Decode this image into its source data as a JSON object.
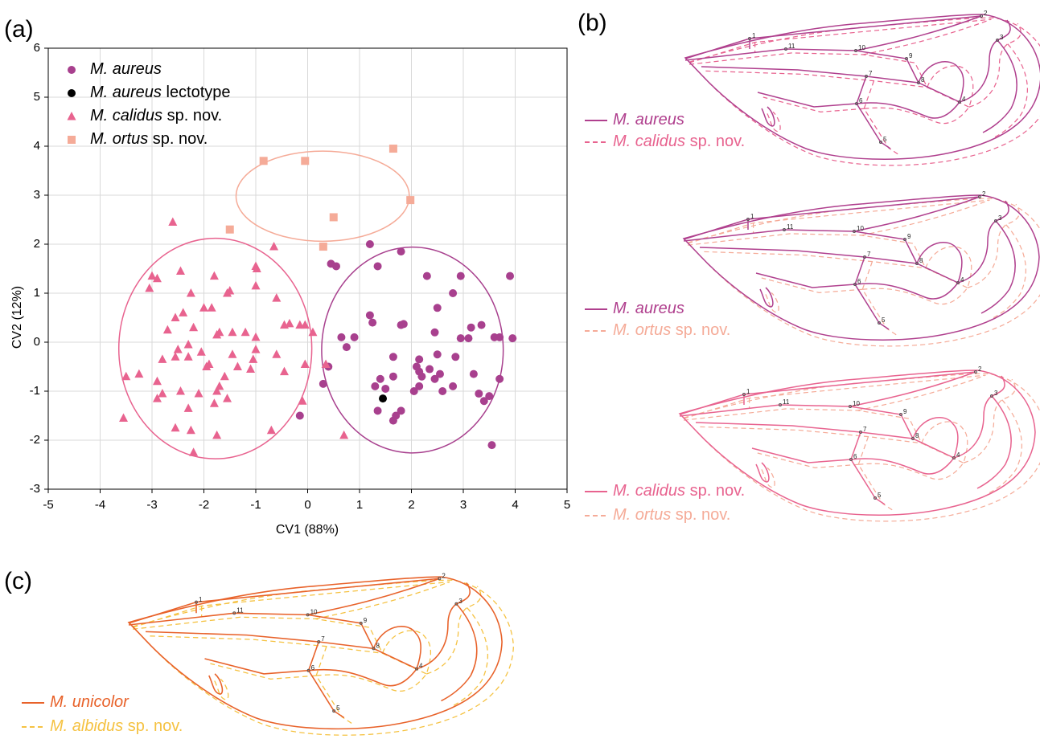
{
  "panel_labels": [
    "(a)",
    "(b)",
    "(c)"
  ],
  "chart_data": {
    "type": "scatter",
    "xlabel": "CV1 (88%)",
    "ylabel": "CV2 (12%)",
    "xlim": [
      -5,
      5
    ],
    "ylim": [
      -3,
      6
    ],
    "xticks": [
      -5,
      -4,
      -3,
      -2,
      -1,
      0,
      1,
      2,
      3,
      4,
      5
    ],
    "yticks": [
      -3,
      -2,
      -1,
      0,
      1,
      2,
      3,
      4,
      5,
      6
    ],
    "grid": true,
    "legend": "upper left",
    "series": [
      {
        "name": "M. aureus",
        "color": "#a8408e",
        "marker": "circle",
        "x": [
          1.2,
          1.8,
          0.55,
          0.45,
          1.35,
          2.3,
          2.95,
          3.9,
          2.8,
          2.5,
          1.2,
          1.25,
          1.8,
          1.85,
          2.45,
          3.15,
          3.35,
          0.65,
          0.9,
          0.75,
          2.95,
          3.1,
          3.6,
          3.7,
          3.95,
          1.65,
          2.15,
          2.5,
          2.85,
          2.1,
          2.35,
          2.55,
          2.2,
          1.4,
          1.65,
          2.15,
          3.2,
          3.7,
          2.45,
          2.15,
          2.05,
          2.6,
          2.8,
          1.3,
          1.5,
          3.3,
          3.5,
          3.4,
          1.35,
          1.8,
          1.7,
          1.65,
          0.4,
          0.3,
          -0.15,
          3.55
        ],
        "y": [
          2.0,
          1.85,
          1.55,
          1.6,
          1.55,
          1.35,
          1.35,
          1.35,
          1.0,
          0.7,
          0.55,
          0.4,
          0.35,
          0.37,
          0.2,
          0.3,
          0.35,
          0.1,
          0.1,
          -0.1,
          0.08,
          0.08,
          0.1,
          0.1,
          0.08,
          -0.3,
          -0.35,
          -0.25,
          -0.3,
          -0.5,
          -0.55,
          -0.65,
          -0.7,
          -0.75,
          -0.7,
          -0.6,
          -0.65,
          -0.75,
          -0.75,
          -0.9,
          -1.0,
          -1.0,
          -0.9,
          -0.9,
          -0.95,
          -1.05,
          -1.1,
          -1.2,
          -1.4,
          -1.4,
          -1.5,
          -1.6,
          -0.5,
          -0.85,
          -1.5,
          -2.1
        ],
        "ellipse": {
          "center": [
            2.02,
            -0.16
          ],
          "radii": [
            1.75,
            2.1
          ]
        }
      },
      {
        "name": "M. aureus lectotype",
        "color": "#000000",
        "marker": "circle",
        "x": [
          1.45
        ],
        "y": [
          -1.15
        ]
      },
      {
        "name": "M. calidus sp. nov.",
        "color": "#e8638f",
        "marker": "triangle",
        "x": [
          -2.6,
          -3.0,
          -2.9,
          -2.45,
          -1.8,
          -1.0,
          -0.98,
          -1.0,
          -1.5,
          -1.55,
          -0.65,
          -2.25,
          -3.05,
          -2.55,
          -2.4,
          -2.0,
          -1.85,
          -2.7,
          -2.2,
          -1.75,
          -1.7,
          -1.45,
          -1.2,
          -1.0,
          -0.6,
          -0.45,
          -0.35,
          -0.05,
          0.1,
          -0.15,
          -3.5,
          -3.25,
          -2.9,
          -2.9,
          -2.8,
          -2.45,
          -2.1,
          -1.75,
          -1.7,
          -1.95,
          -2.55,
          -2.3,
          -2.5,
          -2.05,
          -1.9,
          -1.6,
          -1.35,
          -1.1,
          -1.05,
          -1.0,
          -0.6,
          -0.45,
          -0.05,
          0.35,
          -0.7,
          -1.55,
          -1.8,
          -2.25,
          -2.55,
          -1.75,
          -2.2,
          -2.3,
          -3.55,
          0.7,
          -0.1,
          -1.45,
          -2.3,
          -2.8
        ],
        "y": [
          2.45,
          1.35,
          1.3,
          1.45,
          1.35,
          1.55,
          1.5,
          1.15,
          1.05,
          1.0,
          1.95,
          1.0,
          1.1,
          0.5,
          0.6,
          0.7,
          0.7,
          0.25,
          0.3,
          0.15,
          0.2,
          0.2,
          0.2,
          0.1,
          0.9,
          0.35,
          0.38,
          0.35,
          0.2,
          0.35,
          -0.7,
          -0.65,
          -0.8,
          -1.15,
          -1.05,
          -1.0,
          -1.05,
          -1.0,
          -0.9,
          -0.5,
          -0.3,
          -0.05,
          -0.15,
          -0.2,
          -0.45,
          -0.7,
          -0.5,
          -0.55,
          -0.35,
          -0.15,
          -0.25,
          -0.6,
          -0.45,
          -0.45,
          -1.8,
          -1.15,
          -1.25,
          -1.8,
          -1.75,
          -1.9,
          -2.25,
          -1.35,
          -1.55,
          -1.9,
          -1.2,
          -0.25,
          -0.3,
          -0.35
        ],
        "ellipse": {
          "center": [
            -1.78,
            -0.13
          ],
          "radii": [
            1.86,
            2.25
          ]
        }
      },
      {
        "name": "M. ortus sp. nov.",
        "color": "#f5ab98",
        "marker": "square",
        "x": [
          1.65,
          -0.85,
          -0.05,
          1.98,
          0.5,
          -1.5,
          0.3
        ],
        "y": [
          3.95,
          3.7,
          3.7,
          2.9,
          2.55,
          2.3,
          1.95
        ],
        "ellipse": {
          "center": [
            0.29,
            2.98
          ],
          "radii": [
            1.67,
            0.92
          ]
        }
      }
    ]
  },
  "wings": [
    {
      "solid": "M. aureus",
      "dashed": "M. calidus sp. nov.",
      "solid_color": "#b0408e",
      "dashed_color": "#e8638f",
      "landmarks": [
        "1",
        "2",
        "3",
        "4",
        "5",
        "6",
        "7",
        "8",
        "9",
        "10",
        "11"
      ]
    },
    {
      "solid": "M. aureus",
      "dashed": "M. ortus sp. nov.",
      "solid_color": "#b0408e",
      "dashed_color": "#f5ab98",
      "landmarks": [
        "1",
        "2",
        "3",
        "4",
        "5",
        "6",
        "7",
        "8",
        "9",
        "10",
        "11"
      ]
    },
    {
      "solid": "M. calidus sp. nov.",
      "dashed": "M. ortus sp. nov.",
      "solid_color": "#e8638f",
      "dashed_color": "#f5ab98",
      "landmarks": [
        "1",
        "2",
        "3",
        "4",
        "5",
        "6",
        "7",
        "8",
        "9",
        "10",
        "11"
      ]
    },
    {
      "solid": "M. unicolor",
      "dashed": "M. albidus sp. nov.",
      "solid_color": "#e8622a",
      "dashed_color": "#f5c242",
      "landmarks": [
        "1",
        "2",
        "3",
        "4",
        "5",
        "6",
        "7",
        "8",
        "9",
        "10",
        "11"
      ]
    }
  ]
}
